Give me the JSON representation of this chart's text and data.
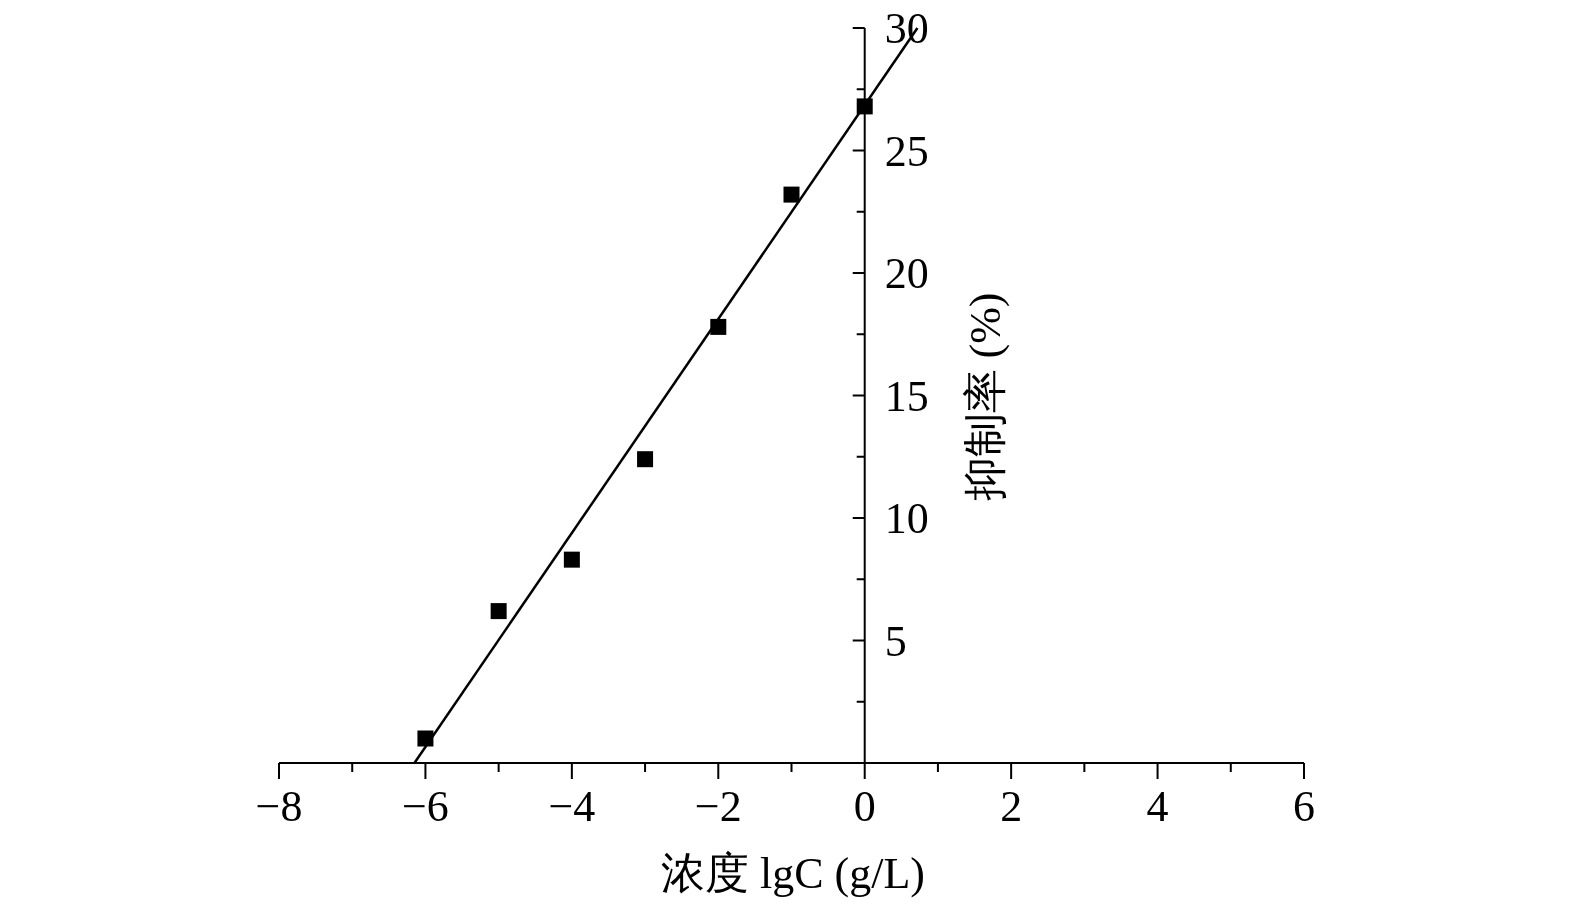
{
  "chart_data": {
    "type": "scatter",
    "xlabel": "浓度 lgC (g/L)",
    "ylabel": "抑制率 (%)",
    "xlim": [
      -8,
      6
    ],
    "ylim": [
      0,
      30
    ],
    "xticks": [
      {
        "value": -8,
        "label": "−8"
      },
      {
        "value": -7,
        "label": null
      },
      {
        "value": -6,
        "label": "−6"
      },
      {
        "value": -5,
        "label": null
      },
      {
        "value": -4,
        "label": "−4"
      },
      {
        "value": -3,
        "label": null
      },
      {
        "value": -2,
        "label": "−2"
      },
      {
        "value": -1,
        "label": null
      },
      0,
      {
        "value": 1,
        "label": null
      },
      2,
      {
        "value": 3,
        "label": null
      },
      4,
      {
        "value": 5,
        "label": null
      },
      6
    ],
    "yticks": [
      {
        "value": 2.5,
        "label": null
      },
      5,
      {
        "value": 7.5,
        "label": null
      },
      10,
      {
        "value": 12.5,
        "label": null
      },
      15,
      {
        "value": 17.5,
        "label": null
      },
      20,
      {
        "value": 22.5,
        "label": null
      },
      25,
      {
        "value": 27.5,
        "label": null
      },
      30
    ],
    "series": [
      {
        "color": "#000000",
        "marker": "square",
        "x": [
          -6,
          -5,
          -4,
          -3,
          -2,
          -1,
          0
        ],
        "values": [
          1.0,
          6.2,
          8.3,
          12.4,
          17.8,
          23.2,
          26.8
        ]
      },
      {
        "type": "line",
        "color": "#000000",
        "marker": "none",
        "line_style": "solid",
        "x": [
          -6.15,
          0.72
        ],
        "values": [
          0,
          30
        ]
      }
    ]
  }
}
